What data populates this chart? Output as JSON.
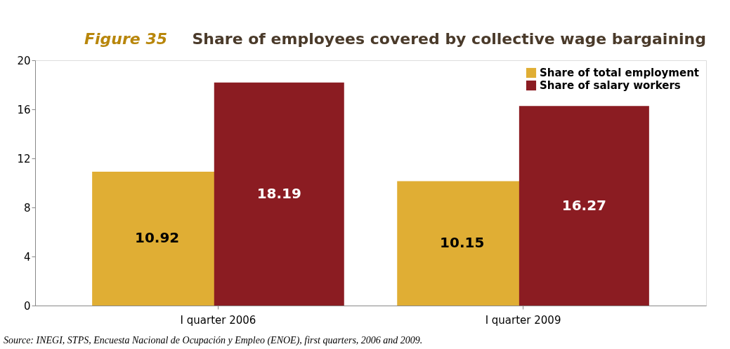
{
  "chart_data": {
    "type": "bar",
    "title": "Share of employees covered by collective wage bargaining",
    "subtitle": "Figure 35",
    "categories": [
      "I quarter 2006",
      "I quarter 2009"
    ],
    "series": [
      {
        "name": "Share of total employment",
        "color": "#e0ae34",
        "values": [
          10.92,
          10.15
        ]
      },
      {
        "name": "Share of salary workers",
        "color": "#8b1c22",
        "values": [
          18.19,
          16.27
        ]
      }
    ],
    "ylim": [
      0,
      20
    ],
    "yticks": [
      0,
      4,
      8,
      12,
      16,
      20
    ],
    "grid": false,
    "legend": "top right",
    "data_labels": true,
    "annotations": [
      "Source: INEGI, STPS, Encuesta Nacional de Ocupación y Empleo (ENOE), first quarters, 2006 and 2009."
    ]
  }
}
